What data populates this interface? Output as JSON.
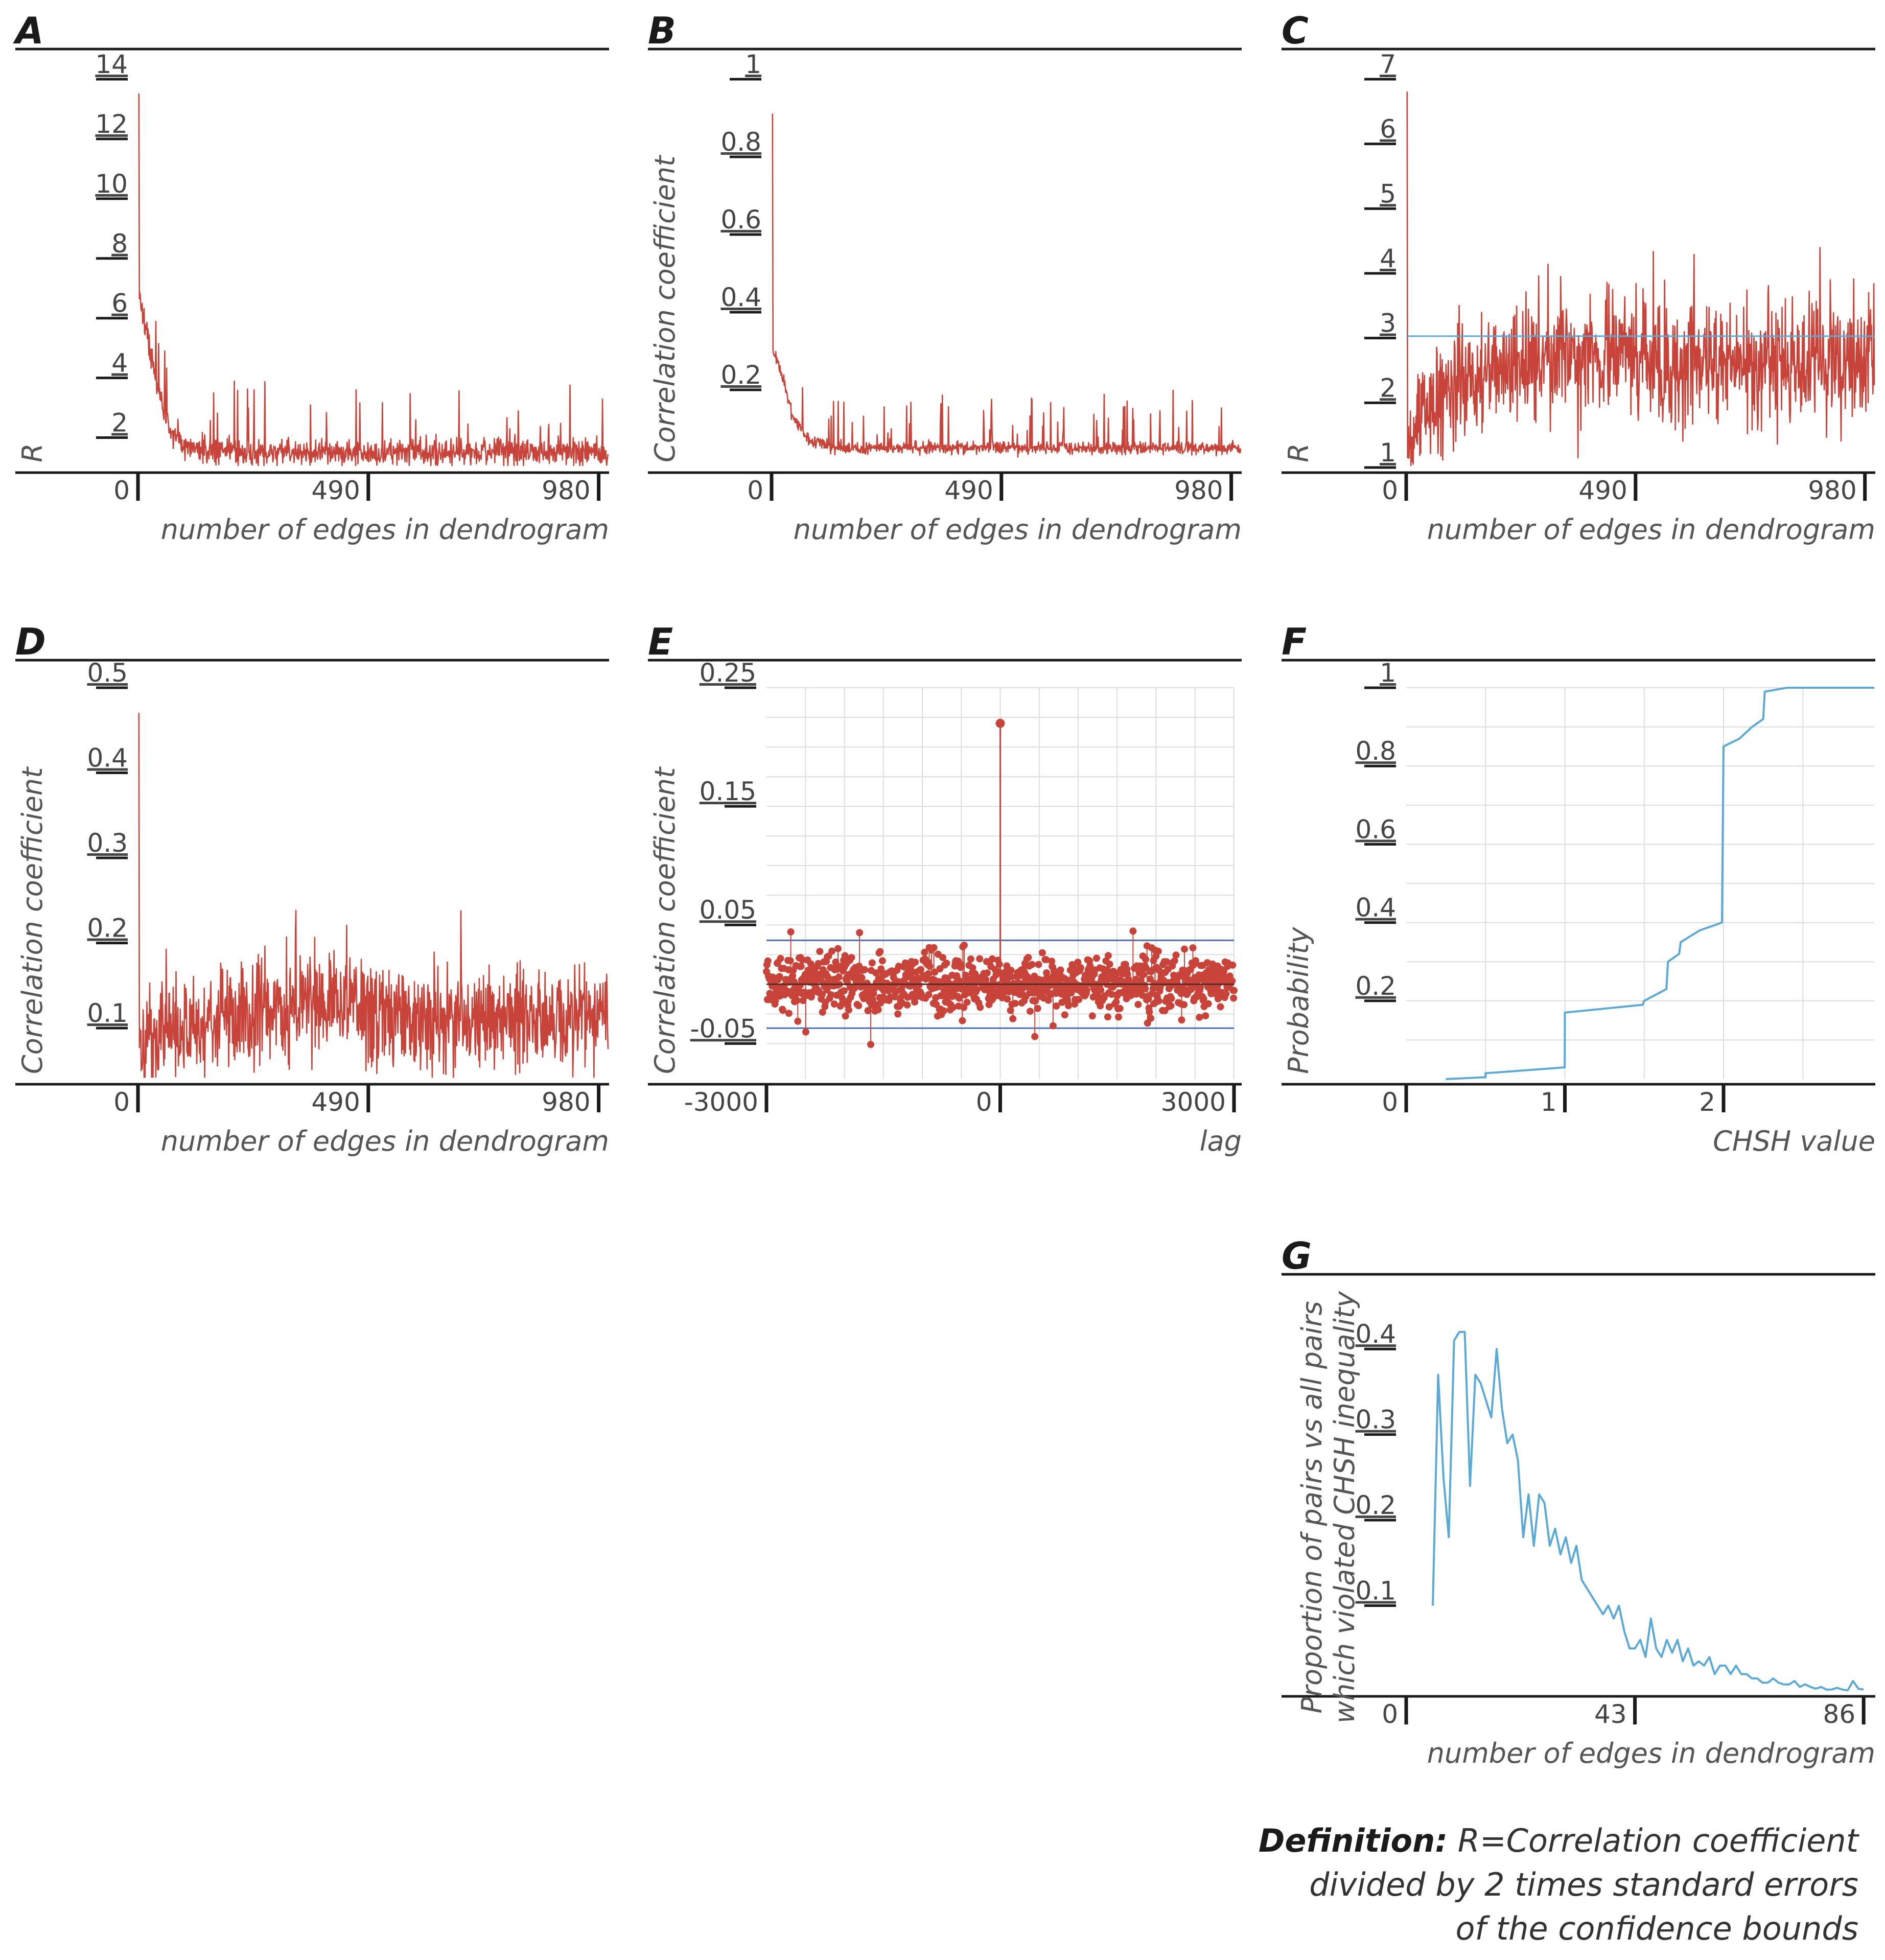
{
  "colors": {
    "red": "#c8443a",
    "blue": "#5aa9d6",
    "axis": "#1a1a1a",
    "grid": "#dddddd"
  },
  "definition": {
    "bold": "Definition:",
    "line1": "R=Correlation coefficient",
    "line2": "divided by 2 times standard errors",
    "line3": "of the confidence bounds"
  },
  "chart_data": [
    {
      "id": "A",
      "label": "A",
      "type": "line",
      "series_color": "red",
      "ylabel": "R",
      "xlabel": "number of edges in dendrogram",
      "xlim": [
        0,
        1000
      ],
      "ylim": [
        1,
        14
      ],
      "yticks": [
        2,
        4,
        6,
        8,
        10,
        12,
        14
      ],
      "ytick_labels": [
        "2",
        "4",
        "6",
        "8",
        "10",
        "12",
        "14"
      ],
      "xticks": [
        0,
        490,
        980
      ],
      "xtick_labels": [
        "0",
        "490",
        "980"
      ],
      "hline": null,
      "profile": [
        [
          1,
          13.5
        ],
        [
          3,
          7
        ],
        [
          10,
          6
        ],
        [
          25,
          5
        ],
        [
          45,
          3.5
        ],
        [
          70,
          2.2
        ],
        [
          100,
          1.8
        ],
        [
          150,
          1.5
        ],
        [
          1000,
          1.5
        ]
      ],
      "noise": 0.22,
      "spike": 2.5
    },
    {
      "id": "B",
      "label": "B",
      "type": "line",
      "series_color": "red",
      "ylabel": "Correlation coefficient",
      "xlabel": "number of edges in dendrogram",
      "xlim": [
        0,
        1000
      ],
      "ylim": [
        0,
        1
      ],
      "yticks": [
        0.2,
        0.4,
        0.6,
        0.8,
        1
      ],
      "ytick_labels": [
        "0.2",
        "0.4",
        "0.6",
        "0.8",
        "1"
      ],
      "xticks": [
        0,
        490,
        980
      ],
      "xtick_labels": [
        "0",
        "490",
        "980"
      ],
      "hline": null,
      "profile": [
        [
          1,
          0.91
        ],
        [
          3,
          0.3
        ],
        [
          20,
          0.25
        ],
        [
          45,
          0.13
        ],
        [
          80,
          0.07
        ],
        [
          150,
          0.05
        ],
        [
          1000,
          0.05
        ]
      ],
      "noise": 0.008,
      "spike": 0.14
    },
    {
      "id": "C",
      "label": "C",
      "type": "line",
      "series_color": "red",
      "ylabel": "R",
      "xlabel": "number of edges in dendrogram",
      "xlim": [
        0,
        1000
      ],
      "ylim": [
        1,
        7
      ],
      "yticks": [
        1,
        2,
        3,
        4,
        5,
        6,
        7
      ],
      "ytick_labels": [
        "1",
        "2",
        "3",
        "4",
        "5",
        "6",
        "7"
      ],
      "xticks": [
        0,
        490,
        980
      ],
      "xtick_labels": [
        "0",
        "490",
        "980"
      ],
      "hline": 3.03,
      "profile": [
        [
          1,
          6.8
        ],
        [
          3,
          1.4
        ],
        [
          40,
          2.0
        ],
        [
          150,
          2.5
        ],
        [
          400,
          2.8
        ],
        [
          600,
          2.6
        ],
        [
          1000,
          2.5
        ]
      ],
      "noise": 0.45,
      "spike": 1.3
    },
    {
      "id": "D",
      "label": "D",
      "type": "line",
      "series_color": "red",
      "ylabel": "Correlation coefficient",
      "xlabel": "number of edges in dendrogram",
      "xlim": [
        0,
        1000
      ],
      "ylim": [
        0.04,
        0.5
      ],
      "yticks": [
        0.1,
        0.2,
        0.3,
        0.4,
        0.5
      ],
      "ytick_labels": [
        "0.1",
        "0.2",
        "0.3",
        "0.4",
        "0.5"
      ],
      "xticks": [
        0,
        490,
        980
      ],
      "xtick_labels": [
        "0",
        "490",
        "980"
      ],
      "hline": null,
      "profile": [
        [
          1,
          0.47
        ],
        [
          3,
          0.06
        ],
        [
          40,
          0.09
        ],
        [
          150,
          0.11
        ],
        [
          400,
          0.13
        ],
        [
          600,
          0.11
        ],
        [
          1000,
          0.11
        ]
      ],
      "noise": 0.03,
      "spike": 0.07
    },
    {
      "id": "E",
      "label": "E",
      "type": "scatter",
      "series_color": "red",
      "ylabel": "Correlation coefficient",
      "xlabel": "lag",
      "xlim": [
        -3000,
        3000
      ],
      "ylim": [
        -0.08,
        0.25
      ],
      "yticks": [
        -0.05,
        0.05,
        0.15,
        0.25
      ],
      "ytick_labels": [
        "-0.05",
        "0.05",
        "0.15",
        "0.25"
      ],
      "xticks": [
        -3000,
        0,
        3000
      ],
      "xtick_labels": [
        "-3000",
        "0",
        "3000"
      ],
      "confidence_bounds": [
        -0.037,
        0.037
      ],
      "peak": {
        "lag": 0,
        "value": 0.22
      },
      "noise_sd": 0.012
    },
    {
      "id": "F",
      "label": "F",
      "type": "line",
      "series_color": "blue",
      "ylabel": "Probability",
      "xlabel": "CHSH value",
      "xlim": [
        0,
        2.95
      ],
      "ylim": [
        0,
        1
      ],
      "yticks": [
        0.2,
        0.4,
        0.6,
        0.8,
        1
      ],
      "ytick_labels": [
        "0.2",
        "0.4",
        "0.6",
        "0.8",
        "1"
      ],
      "xticks": [
        0,
        1,
        2
      ],
      "xtick_labels": [
        "0",
        "1",
        "2"
      ],
      "step_points": [
        [
          0.25,
          0
        ],
        [
          0.5,
          0.005
        ],
        [
          0.5,
          0.015
        ],
        [
          0.999,
          0.03
        ],
        [
          1,
          0.17
        ],
        [
          1.49,
          0.19
        ],
        [
          1.5,
          0.2
        ],
        [
          1.64,
          0.23
        ],
        [
          1.65,
          0.3
        ],
        [
          1.72,
          0.32
        ],
        [
          1.73,
          0.35
        ],
        [
          1.85,
          0.38
        ],
        [
          1.99,
          0.4
        ],
        [
          2,
          0.85
        ],
        [
          2.1,
          0.87
        ],
        [
          2.18,
          0.9
        ],
        [
          2.25,
          0.92
        ],
        [
          2.26,
          0.99
        ],
        [
          2.4,
          1
        ],
        [
          2.95,
          1
        ]
      ]
    },
    {
      "id": "G",
      "label": "G",
      "type": "line",
      "series_color": "blue",
      "ylabel": "Proportion of pairs vs all pairs which violated CHSH inequality",
      "ylabel_line1": "Proportion of pairs vs all pairs",
      "ylabel_line2": "which violated CHSH inequality",
      "xlabel": "number of edges in dendrogram",
      "xlim": [
        0,
        88
      ],
      "ylim": [
        0,
        0.43
      ],
      "yticks": [
        0.1,
        0.2,
        0.3,
        0.4
      ],
      "ytick_labels": [
        "0.1",
        "0.2",
        "0.3",
        "0.4"
      ],
      "xticks": [
        0,
        43,
        86
      ],
      "xtick_labels": [
        "0",
        "43",
        "86"
      ],
      "x": [
        5,
        6,
        7,
        8,
        9,
        10,
        11,
        12,
        13,
        14,
        15,
        16,
        17,
        18,
        19,
        20,
        21,
        22,
        23,
        24,
        25,
        26,
        27,
        28,
        29,
        30,
        31,
        32,
        33,
        34,
        35,
        36,
        37,
        38,
        39,
        40,
        41,
        42,
        43,
        44,
        45,
        46,
        47,
        48,
        49,
        50,
        51,
        52,
        53,
        54,
        55,
        56,
        57,
        58,
        59,
        60,
        61,
        62,
        63,
        64,
        65,
        66,
        67,
        68,
        69,
        70,
        71,
        72,
        73,
        74,
        75,
        76,
        77,
        78,
        79,
        80,
        81,
        82,
        83,
        84,
        85,
        86
      ],
      "values": [
        0.1,
        0.37,
        0.25,
        0.18,
        0.41,
        0.42,
        0.42,
        0.24,
        0.37,
        0.36,
        0.34,
        0.32,
        0.4,
        0.33,
        0.29,
        0.3,
        0.27,
        0.18,
        0.23,
        0.17,
        0.23,
        0.22,
        0.17,
        0.19,
        0.16,
        0.18,
        0.15,
        0.17,
        0.13,
        0.12,
        0.11,
        0.1,
        0.09,
        0.1,
        0.085,
        0.1,
        0.07,
        0.05,
        0.05,
        0.06,
        0.04,
        0.085,
        0.05,
        0.04,
        0.06,
        0.045,
        0.06,
        0.035,
        0.05,
        0.03,
        0.035,
        0.03,
        0.04,
        0.02,
        0.03,
        0.03,
        0.02,
        0.03,
        0.02,
        0.02,
        0.015,
        0.015,
        0.01,
        0.01,
        0.015,
        0.01,
        0.008,
        0.008,
        0.012,
        0.005,
        0.008,
        0.005,
        0.003,
        0.005,
        0.002,
        0.002,
        0.004,
        0.002,
        0.001,
        0.012,
        0.003,
        0.002
      ]
    }
  ]
}
